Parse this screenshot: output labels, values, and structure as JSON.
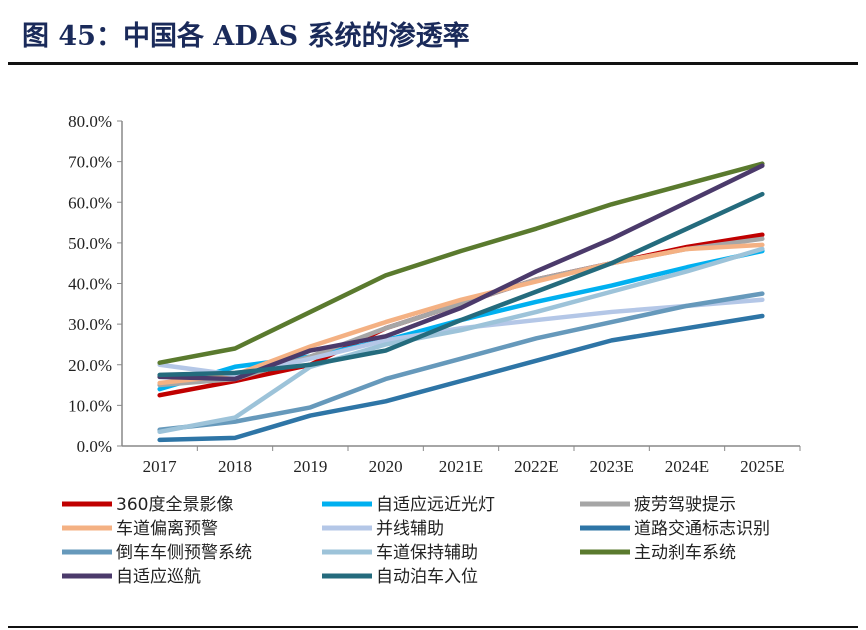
{
  "title": "图 45：中国各 ADAS 系统的渗透率",
  "chart_data": {
    "type": "line",
    "title": "",
    "categories": [
      "2017",
      "2018",
      "2019",
      "2020",
      "2021E",
      "2022E",
      "2023E",
      "2024E",
      "2025E"
    ],
    "ylim": [
      0,
      80
    ],
    "yticks": [
      "0.0%",
      "10.0%",
      "20.0%",
      "30.0%",
      "40.0%",
      "50.0%",
      "60.0%",
      "70.0%",
      "80.0%"
    ],
    "grid": false,
    "legend": "bottom",
    "series": [
      {
        "name": "360度全景影像",
        "color": "#c00000",
        "values": [
          12.5,
          16,
          20,
          29,
          35,
          41,
          45,
          49,
          52
        ]
      },
      {
        "name": "自适应远近光灯",
        "color": "#00b0f0",
        "values": [
          14,
          19.5,
          22,
          26,
          31,
          35.5,
          39.5,
          44,
          48
        ]
      },
      {
        "name": "疲劳驾驶提示",
        "color": "#a6a6a6",
        "values": [
          15,
          16.5,
          22,
          29,
          35,
          41,
          45,
          48.5,
          51
        ]
      },
      {
        "name": "车道偏离预警",
        "color": "#f4b183",
        "values": [
          15.5,
          17.5,
          24.5,
          30.5,
          36,
          40.5,
          45,
          48.5,
          49.5
        ]
      },
      {
        "name": "并线辅助",
        "color": "#b4c7e7",
        "values": [
          20,
          17.5,
          21.5,
          26,
          29,
          31,
          33,
          34.5,
          36
        ]
      },
      {
        "name": "道路交通标志识别",
        "color": "#2e75a6",
        "values": [
          1.5,
          2,
          7.5,
          11,
          16,
          21,
          26,
          29,
          32
        ]
      },
      {
        "name": "倒车车侧预警系统",
        "color": "#6699bb",
        "values": [
          4,
          6,
          9.5,
          16.5,
          21.5,
          26.5,
          30.5,
          34.5,
          37.5
        ]
      },
      {
        "name": "车道保持辅助",
        "color": "#9dc3d9",
        "values": [
          3.5,
          7,
          19.5,
          25,
          28.5,
          33,
          38,
          43,
          48.5
        ]
      },
      {
        "name": "主动刹车系统",
        "color": "#5a7a2e",
        "values": [
          20.5,
          24,
          33,
          42,
          48,
          53.5,
          59.5,
          64.5,
          69.5
        ]
      },
      {
        "name": "自适应巡航",
        "color": "#4b3a6b",
        "values": [
          17,
          16.5,
          23.5,
          27,
          34,
          43,
          51,
          60,
          69
        ]
      },
      {
        "name": "自动泊车入位",
        "color": "#246b7d",
        "values": [
          17.5,
          18,
          20,
          23.5,
          31,
          38,
          45,
          53.5,
          62
        ]
      }
    ]
  }
}
